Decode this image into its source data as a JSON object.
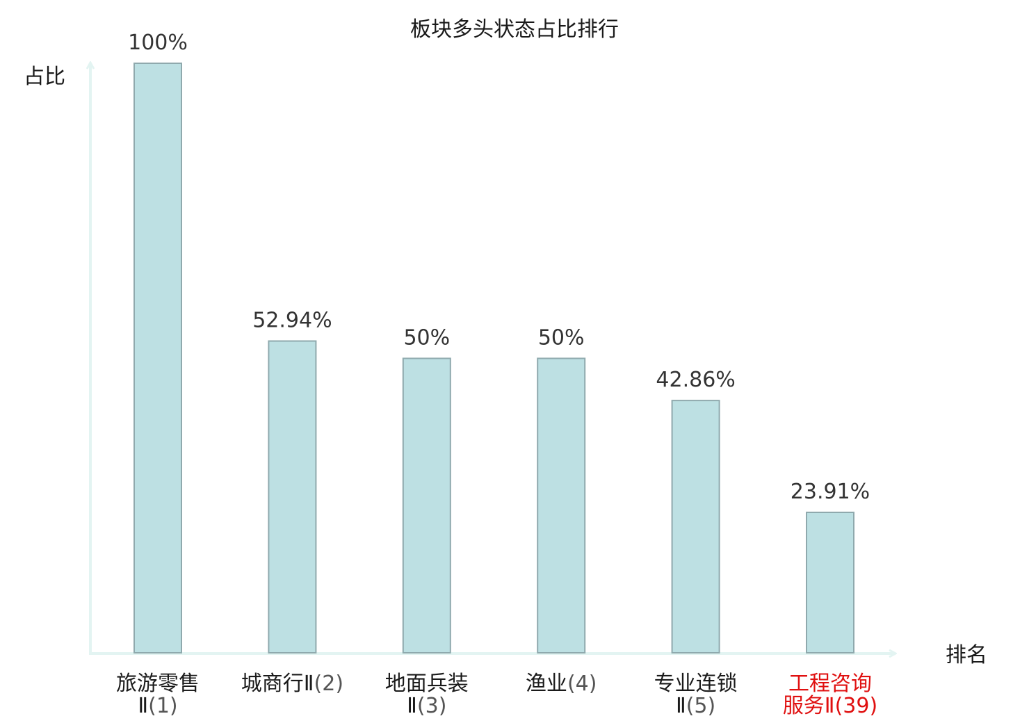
{
  "chart_data": {
    "type": "bar",
    "title": "板块多头状态占比排行",
    "ylabel": "占比",
    "xlabel": "排名",
    "ylim": [
      0,
      100
    ],
    "grid": false,
    "categories": [
      {
        "name_lines": [
          "旅游零售",
          "Ⅱ"
        ],
        "rank": "(1)",
        "highlight": false
      },
      {
        "name_lines": [
          "城商行Ⅱ"
        ],
        "rank": "(2)",
        "highlight": false
      },
      {
        "name_lines": [
          "地面兵装",
          "Ⅱ"
        ],
        "rank": "(3)",
        "highlight": false
      },
      {
        "name_lines": [
          "渔业"
        ],
        "rank": "(4)",
        "highlight": false
      },
      {
        "name_lines": [
          "专业连锁",
          "Ⅱ"
        ],
        "rank": "(5)",
        "highlight": false
      },
      {
        "name_lines": [
          "工程咨询",
          "服务Ⅱ"
        ],
        "rank": "(39)",
        "highlight": true
      }
    ],
    "values": [
      100,
      52.94,
      50,
      50,
      42.86,
      23.91
    ],
    "value_labels": [
      "100%",
      "52.94%",
      "50%",
      "50%",
      "42.86%",
      "23.91%"
    ],
    "colors": {
      "bar_fill": "#bde0e3",
      "bar_stroke": "#8fa9ad",
      "axis": "#e3f4f2",
      "highlight": "#e01010"
    }
  }
}
